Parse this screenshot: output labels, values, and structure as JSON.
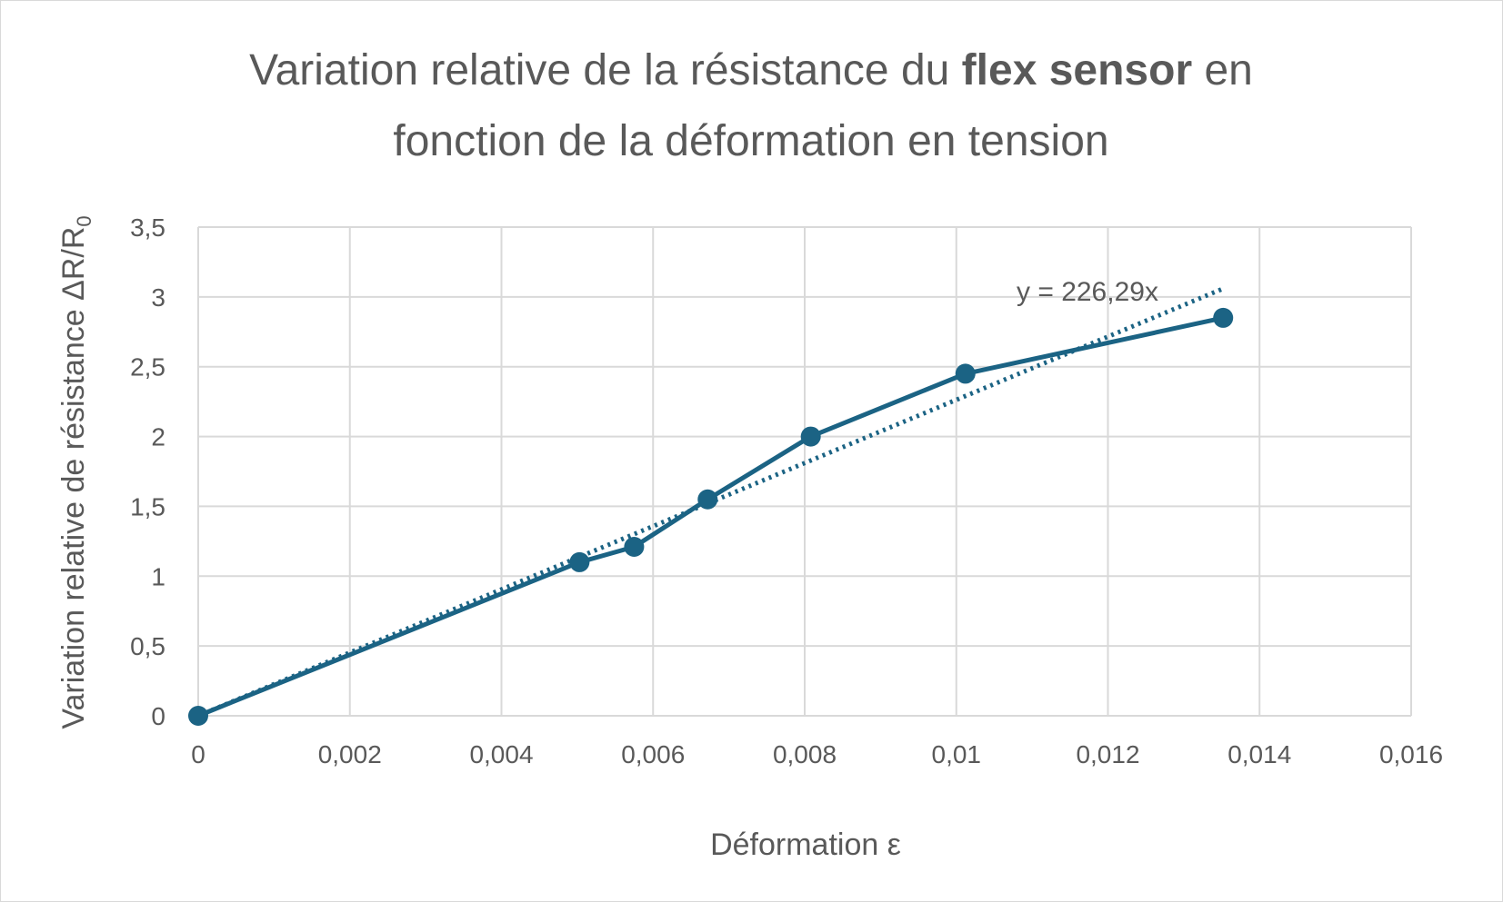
{
  "chart_data": {
    "type": "scatter",
    "title": {
      "line1_prefix": "Variation relative de la résistance du ",
      "line1_bold": "flex sensor",
      "line1_suffix": " en",
      "line2": "fonction de la déformation en tension"
    },
    "xlabel": "Déformation ε",
    "ylabel": {
      "main": "Variation relative de résistance ΔR/R",
      "subscript": "0"
    },
    "xlim": [
      0,
      0.016
    ],
    "ylim": [
      0,
      3.5
    ],
    "x_ticks": [
      0,
      0.002,
      0.004,
      0.006,
      0.008,
      0.01,
      0.012,
      0.014,
      0.016
    ],
    "x_tick_labels": [
      "0",
      "0,002",
      "0,004",
      "0,006",
      "0,008",
      "0,01",
      "0,012",
      "0,014",
      "0,016"
    ],
    "y_ticks": [
      0,
      0.5,
      1,
      1.5,
      2,
      2.5,
      3,
      3.5
    ],
    "y_tick_labels": [
      "0",
      "0,5",
      "1",
      "1,5",
      "2",
      "2,5",
      "3",
      "3,5"
    ],
    "grid": true,
    "series": [
      {
        "x": [
          0,
          0.00503,
          0.00575,
          0.00672,
          0.00808,
          0.01012,
          0.01352
        ],
        "y": [
          0,
          1.1,
          1.21,
          1.55,
          2.0,
          2.45,
          2.85
        ],
        "color": "#1b6384",
        "style": "line-markers"
      }
    ],
    "trendline": {
      "type": "linear",
      "slope": 226.29,
      "intercept": 0,
      "x_range": [
        0,
        0.01352
      ],
      "equation_label": "y = 226,29x",
      "color": "#1b6384",
      "style": "dotted"
    }
  }
}
